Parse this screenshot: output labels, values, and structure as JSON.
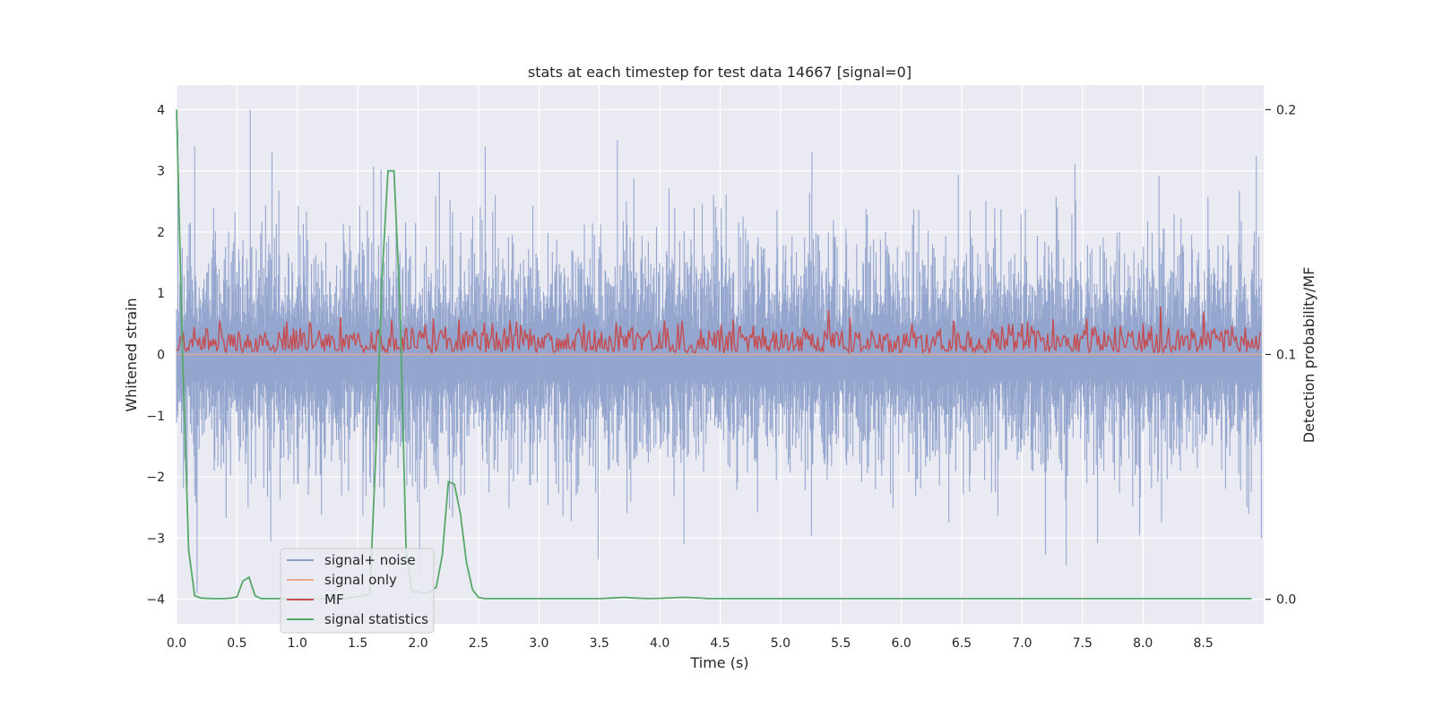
{
  "chart_data": {
    "type": "line",
    "title": "stats at each timestep for test data 14667 [signal=0]",
    "xlabel": "Time (s)",
    "ylabel": "Whitened strain",
    "ylabel_right": "Detection probability/MF",
    "xlim": [
      0.0,
      9.0
    ],
    "ylim": [
      -4.4,
      4.4
    ],
    "ylim_right": [
      -0.01,
      0.21
    ],
    "x_ticks": [
      "0.0",
      "0.5",
      "1.0",
      "1.5",
      "2.0",
      "2.5",
      "3.0",
      "3.5",
      "4.0",
      "4.5",
      "5.0",
      "5.5",
      "6.0",
      "6.5",
      "7.0",
      "7.5",
      "8.0",
      "8.5"
    ],
    "y_ticks": [
      "4",
      "3",
      "2",
      "1",
      "0",
      "−1",
      "−2",
      "−3",
      "−4"
    ],
    "y_right_ticks": [
      "0.2",
      "0.1",
      "0.0"
    ],
    "grid": true,
    "legend_position": "lower-left",
    "series": [
      {
        "name": "signal+ noise",
        "axis": "left",
        "color": "#8da0cb",
        "description_values": {
          "range": [
            -3.9,
            4.0
          ],
          "fs_approx": 2048,
          "typical_std": 1.0
        }
      },
      {
        "name": "signal only",
        "axis": "left",
        "color": "#e9a98a",
        "values_flat": 0
      },
      {
        "name": "MF",
        "axis": "left",
        "color": "#c44e52",
        "description_values": {
          "range": [
            0.0,
            1.0
          ],
          "typical_mean": 0.25
        }
      },
      {
        "name": "signal statistics",
        "axis": "right",
        "color": "#55a868",
        "x": [
          0.0,
          0.05,
          0.1,
          0.15,
          0.2,
          0.3,
          0.4,
          0.45,
          0.5,
          0.55,
          0.6,
          0.65,
          0.7,
          0.8,
          1.0,
          1.2,
          1.4,
          1.6,
          1.65,
          1.7,
          1.75,
          1.8,
          1.85,
          1.9,
          1.95,
          2.0,
          2.05,
          2.1,
          2.15,
          2.2,
          2.25,
          2.3,
          2.35,
          2.4,
          2.45,
          2.5,
          2.55,
          2.6,
          3.0,
          3.5,
          3.6,
          3.7,
          3.8,
          3.9,
          4.0,
          4.1,
          4.2,
          4.3,
          4.4,
          5.0,
          6.0,
          7.0,
          7.5,
          8.0,
          8.5,
          8.9
        ],
        "values": [
          0.2,
          0.1,
          0.02,
          0.0015,
          0.0005,
          0.0003,
          0.0003,
          0.0005,
          0.001,
          0.0075,
          0.009,
          0.0015,
          0.0003,
          0.0003,
          0.0003,
          0.0003,
          0.0003,
          0.002,
          0.06,
          0.13,
          0.175,
          0.175,
          0.12,
          0.02,
          0.003,
          0.003,
          0.0025,
          0.003,
          0.005,
          0.018,
          0.048,
          0.047,
          0.035,
          0.015,
          0.004,
          0.0008,
          0.0003,
          0.0003,
          0.0003,
          0.0003,
          0.0005,
          0.0008,
          0.0005,
          0.0003,
          0.0004,
          0.0006,
          0.0008,
          0.0006,
          0.0003,
          0.0003,
          0.0003,
          0.0003,
          0.0003,
          0.0003,
          0.0003,
          0.0003
        ]
      }
    ]
  },
  "colors": {
    "plot_background": "#eaeaf2",
    "grid": "#ffffff",
    "noise": "#8da0cb",
    "signal_only": "#e9a98a",
    "mf": "#c44e52",
    "stats": "#55a868"
  }
}
